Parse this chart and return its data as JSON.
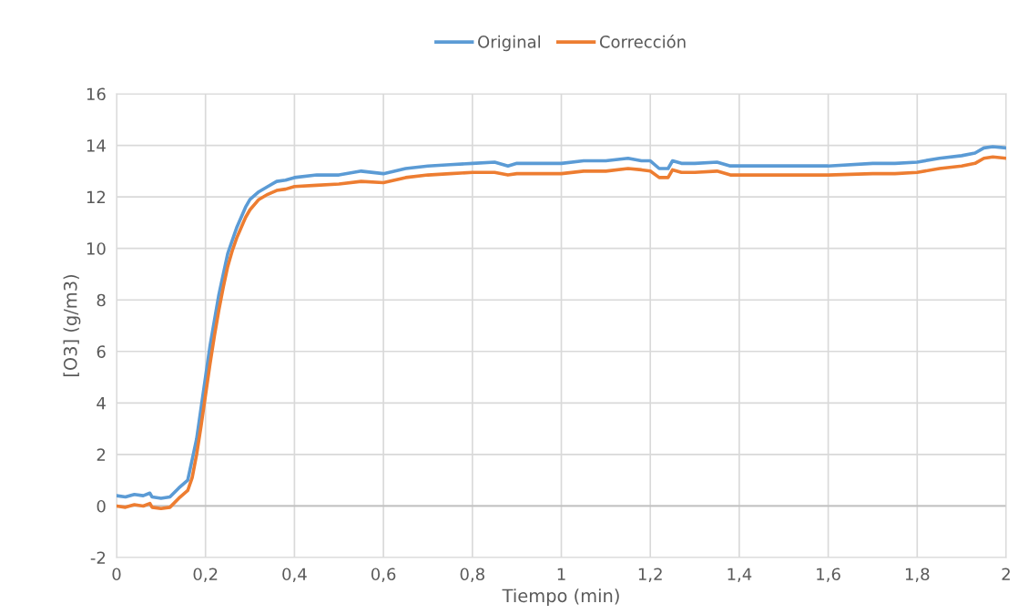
{
  "chart_data": {
    "type": "line",
    "xlabel": "Tiempo (min)",
    "ylabel": "[O3] (g/m3)",
    "x": [
      0,
      0.02,
      0.04,
      0.06,
      0.075,
      0.08,
      0.1,
      0.12,
      0.14,
      0.16,
      0.17,
      0.18,
      0.19,
      0.2,
      0.21,
      0.22,
      0.23,
      0.24,
      0.25,
      0.26,
      0.27,
      0.28,
      0.29,
      0.3,
      0.32,
      0.34,
      0.36,
      0.38,
      0.4,
      0.45,
      0.5,
      0.55,
      0.6,
      0.65,
      0.7,
      0.75,
      0.8,
      0.85,
      0.88,
      0.9,
      0.95,
      1.0,
      1.05,
      1.1,
      1.15,
      1.18,
      1.2,
      1.22,
      1.24,
      1.25,
      1.27,
      1.3,
      1.35,
      1.38,
      1.4,
      1.5,
      1.6,
      1.7,
      1.75,
      1.8,
      1.85,
      1.9,
      1.93,
      1.95,
      1.97,
      2.0
    ],
    "series": [
      {
        "name": "Original",
        "color": "#5b9bd5",
        "values": [
          0.4,
          0.35,
          0.45,
          0.4,
          0.5,
          0.35,
          0.3,
          0.35,
          0.7,
          1.0,
          1.8,
          2.6,
          3.8,
          5.0,
          6.2,
          7.2,
          8.2,
          9.0,
          9.8,
          10.3,
          10.8,
          11.2,
          11.6,
          11.9,
          12.2,
          12.4,
          12.6,
          12.65,
          12.75,
          12.85,
          12.85,
          13.0,
          12.9,
          13.1,
          13.2,
          13.25,
          13.3,
          13.35,
          13.2,
          13.3,
          13.3,
          13.3,
          13.4,
          13.4,
          13.5,
          13.4,
          13.4,
          13.1,
          13.1,
          13.4,
          13.3,
          13.3,
          13.35,
          13.2,
          13.2,
          13.2,
          13.2,
          13.3,
          13.3,
          13.35,
          13.5,
          13.6,
          13.7,
          13.9,
          13.95,
          13.9
        ]
      },
      {
        "name": "Corrección",
        "color": "#ed7d31",
        "values": [
          0.0,
          -0.05,
          0.05,
          0.0,
          0.1,
          -0.05,
          -0.1,
          -0.05,
          0.3,
          0.6,
          1.1,
          2.0,
          3.1,
          4.3,
          5.5,
          6.6,
          7.6,
          8.5,
          9.3,
          9.9,
          10.4,
          10.8,
          11.2,
          11.5,
          11.9,
          12.1,
          12.25,
          12.3,
          12.4,
          12.45,
          12.5,
          12.6,
          12.55,
          12.75,
          12.85,
          12.9,
          12.95,
          12.95,
          12.85,
          12.9,
          12.9,
          12.9,
          13.0,
          13.0,
          13.1,
          13.05,
          13.0,
          12.75,
          12.75,
          13.05,
          12.95,
          12.95,
          13.0,
          12.85,
          12.85,
          12.85,
          12.85,
          12.9,
          12.9,
          12.95,
          13.1,
          13.2,
          13.3,
          13.5,
          13.55,
          13.5
        ]
      }
    ],
    "xlim": [
      0,
      2
    ],
    "xticks": [
      0,
      {
        "value": 0.2,
        "label": "0,2"
      },
      {
        "value": 0.4,
        "label": "0,4"
      },
      {
        "value": 0.6,
        "label": "0,6"
      },
      {
        "value": 0.8,
        "label": "0,8"
      },
      1,
      {
        "value": 1.2,
        "label": "1,2"
      },
      {
        "value": 1.4,
        "label": "1,4"
      },
      {
        "value": 1.6,
        "label": "1,6"
      },
      {
        "value": 1.8,
        "label": "1,8"
      },
      2
    ],
    "ylim": [
      -2,
      16
    ],
    "yticks": [
      -2,
      0,
      2,
      4,
      6,
      8,
      10,
      12,
      14,
      16
    ],
    "grid": true,
    "legend": "top",
    "marker": "none",
    "line_style": "solid"
  }
}
